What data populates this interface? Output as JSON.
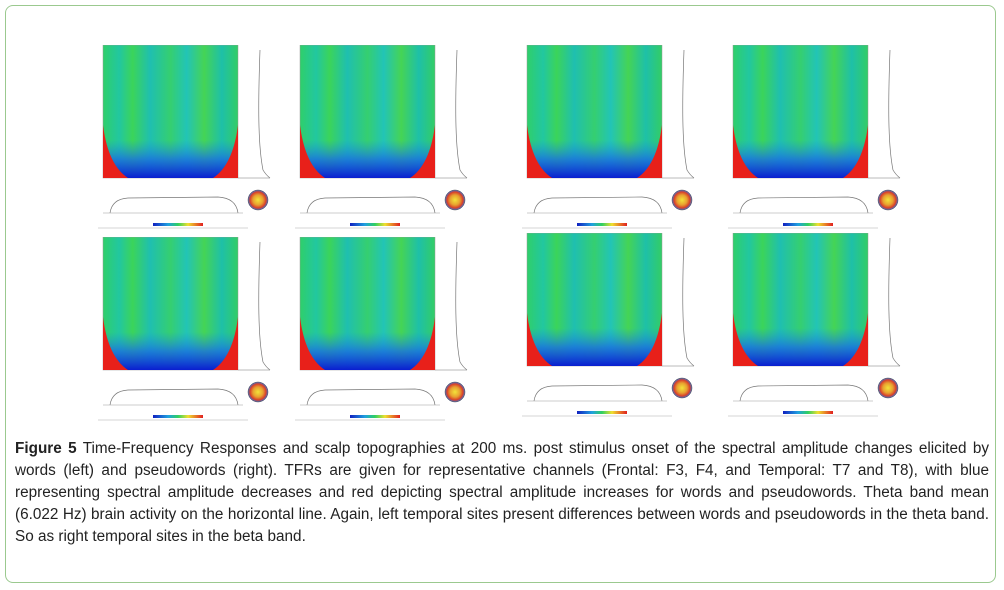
{
  "figure": {
    "caption_label": "Figure 5",
    "caption": "Time-Frequency Responses and scalp topographies at 200 ms. post stimulus onset of the spectral amplitude changes elicited by words (left) and pseudowords (right). TFRs are given for representative channels (Frontal: F3, F4, and Temporal: T7 and T8), with blue representing spectral amplitude decreases and red depicting spectral amplitude increases for words and pseudowords. Theta band mean (6.022 Hz) brain activity on the horizontal line. Again, left temporal sites present differences between words and pseudowords in the theta band. So as right temporal sites in the beta band."
  }
}
